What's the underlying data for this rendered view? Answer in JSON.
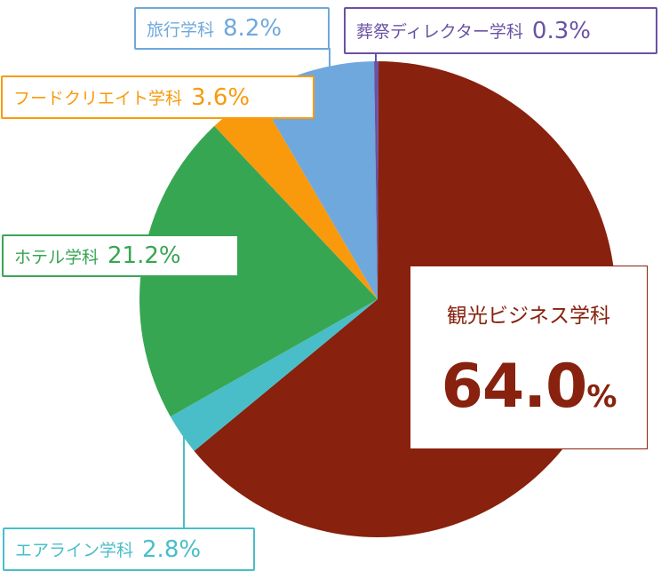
{
  "chart_data": {
    "type": "pie",
    "title": "",
    "center": [
      425,
      337
    ],
    "radius": 268,
    "slices": [
      {
        "name": "観光ビジネス学科",
        "value": 64.0,
        "label": "64.0",
        "color": "#88210d"
      },
      {
        "name": "エアライン学科",
        "value": 2.8,
        "label": "2.8%",
        "color": "#49bec8"
      },
      {
        "name": "ホテル学科",
        "value": 21.2,
        "label": "21.2%",
        "color": "#37a653"
      },
      {
        "name": "フードクリエイト学科",
        "value": 3.6,
        "label": "3.6%",
        "color": "#f99a0c"
      },
      {
        "name": "旅行学科",
        "value": 8.2,
        "label": "8.2%",
        "color": "#6fa8dc"
      },
      {
        "name": "葬祭ディレクター学科",
        "value": 0.3,
        "label": "0.3%",
        "color": "#6a52a3"
      }
    ],
    "legend": "callout labels"
  },
  "labels": {
    "main": {
      "name": "観光ビジネス学科",
      "value": "64.0",
      "pct": "%"
    },
    "airline": {
      "name": "エアライン学科",
      "value": "2.8%"
    },
    "hotel": {
      "name": "ホテル学科",
      "value": "21.2%"
    },
    "food": {
      "name": "フードクリエイト学科",
      "value": "3.6%"
    },
    "travel": {
      "name": "旅行学科",
      "value": "8.2%"
    },
    "funeral": {
      "name": "葬祭ディレクター学科",
      "value": "0.3%"
    }
  }
}
